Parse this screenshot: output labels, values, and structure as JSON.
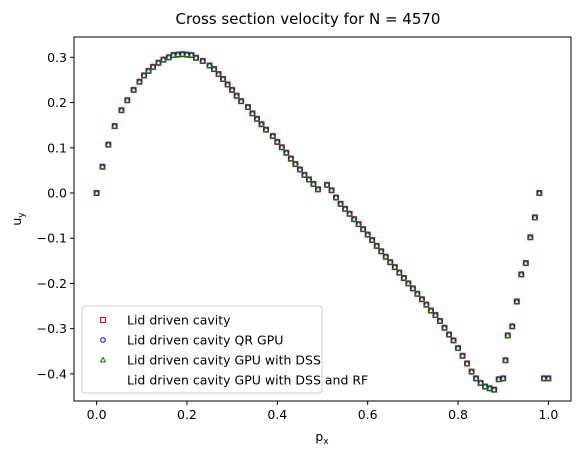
{
  "chart_data": {
    "type": "scatter",
    "title": "Cross section velocity for N = 4570",
    "xlabel_base": "p",
    "xlabel_sub": "x",
    "ylabel_base": "u",
    "ylabel_sub": "y",
    "xlim": [
      -0.05,
      1.05
    ],
    "ylim": [
      -0.46,
      0.345
    ],
    "x_ticks": [
      0.0,
      0.2,
      0.4,
      0.6,
      0.8,
      1.0
    ],
    "x_tick_labels": [
      "0.0",
      "0.2",
      "0.4",
      "0.6",
      "0.8",
      "1.0"
    ],
    "y_ticks": [
      -0.4,
      -0.3,
      -0.2,
      -0.1,
      0.0,
      0.1,
      0.2,
      0.3
    ],
    "y_tick_labels": [
      "−0.4",
      "−0.3",
      "−0.2",
      "−0.1",
      "0.0",
      "0.1",
      "0.2",
      "0.3"
    ],
    "grid": false,
    "legend_position": "lower-left",
    "x": [
      0.0,
      0.013,
      0.026,
      0.04,
      0.055,
      0.068,
      0.082,
      0.095,
      0.105,
      0.115,
      0.125,
      0.137,
      0.148,
      0.16,
      0.17,
      0.18,
      0.19,
      0.2,
      0.21,
      0.22,
      0.235,
      0.25,
      0.26,
      0.27,
      0.28,
      0.29,
      0.3,
      0.31,
      0.32,
      0.335,
      0.345,
      0.355,
      0.365,
      0.375,
      0.39,
      0.4,
      0.41,
      0.42,
      0.43,
      0.44,
      0.45,
      0.46,
      0.47,
      0.48,
      0.49,
      0.51,
      0.52,
      0.53,
      0.54,
      0.55,
      0.56,
      0.57,
      0.58,
      0.59,
      0.6,
      0.61,
      0.62,
      0.63,
      0.64,
      0.65,
      0.66,
      0.67,
      0.68,
      0.69,
      0.7,
      0.71,
      0.72,
      0.73,
      0.74,
      0.75,
      0.76,
      0.77,
      0.78,
      0.79,
      0.8,
      0.81,
      0.82,
      0.83,
      0.84,
      0.85,
      0.86,
      0.87,
      0.88,
      0.89,
      0.9,
      0.905,
      0.91,
      0.92,
      0.93,
      0.94,
      0.95,
      0.96,
      0.97,
      0.98,
      0.99,
      1.0
    ],
    "series": [
      {
        "name": "Lid driven cavity",
        "marker": "square",
        "color": "#ff0000",
        "values": [
          0.0,
          0.058,
          0.107,
          0.148,
          0.183,
          0.205,
          0.228,
          0.246,
          0.26,
          0.27,
          0.279,
          0.288,
          0.295,
          0.3,
          0.305,
          0.306,
          0.307,
          0.306,
          0.305,
          0.299,
          0.292,
          0.282,
          0.274,
          0.263,
          0.252,
          0.24,
          0.228,
          0.215,
          0.203,
          0.19,
          0.176,
          0.164,
          0.152,
          0.14,
          0.126,
          0.113,
          0.101,
          0.089,
          0.076,
          0.064,
          0.052,
          0.04,
          0.03,
          0.02,
          0.008,
          0.018,
          0.006,
          -0.01,
          -0.024,
          -0.035,
          -0.046,
          -0.058,
          -0.069,
          -0.08,
          -0.092,
          -0.104,
          -0.117,
          -0.129,
          -0.141,
          -0.153,
          -0.164,
          -0.176,
          -0.188,
          -0.2,
          -0.211,
          -0.223,
          -0.235,
          -0.247,
          -0.26,
          -0.27,
          -0.283,
          -0.298,
          -0.313,
          -0.326,
          -0.343,
          -0.36,
          -0.377,
          -0.395,
          -0.41,
          -0.42,
          -0.428,
          -0.432,
          -0.435,
          -0.412,
          -0.41,
          -0.37,
          -0.315,
          -0.295,
          -0.24,
          -0.18,
          -0.155,
          -0.098,
          -0.054,
          0.0,
          -0.41,
          -0.41
        ]
      },
      {
        "name": "Lid driven cavity QR GPU",
        "marker": "circle",
        "color": "#0000ff",
        "values": [
          0.0,
          0.058,
          0.107,
          0.148,
          0.183,
          0.205,
          0.228,
          0.246,
          0.26,
          0.27,
          0.279,
          0.288,
          0.295,
          0.3,
          0.305,
          0.306,
          0.307,
          0.306,
          0.305,
          0.299,
          0.292,
          0.282,
          0.274,
          0.263,
          0.252,
          0.24,
          0.228,
          0.215,
          0.203,
          0.19,
          0.176,
          0.164,
          0.152,
          0.14,
          0.126,
          0.113,
          0.101,
          0.089,
          0.076,
          0.064,
          0.052,
          0.04,
          0.03,
          0.02,
          0.008,
          0.018,
          0.006,
          -0.01,
          -0.024,
          -0.035,
          -0.046,
          -0.058,
          -0.069,
          -0.08,
          -0.092,
          -0.104,
          -0.117,
          -0.129,
          -0.141,
          -0.153,
          -0.164,
          -0.176,
          -0.188,
          -0.2,
          -0.211,
          -0.223,
          -0.235,
          -0.247,
          -0.26,
          -0.27,
          -0.283,
          -0.298,
          -0.313,
          -0.326,
          -0.343,
          -0.36,
          -0.377,
          -0.395,
          -0.41,
          -0.42,
          -0.428,
          -0.432,
          -0.435,
          -0.412,
          -0.41,
          -0.37,
          -0.315,
          -0.295,
          -0.24,
          -0.18,
          -0.155,
          -0.098,
          -0.054,
          0.0,
          -0.41,
          -0.41
        ]
      },
      {
        "name": "Lid driven cavity GPU with DSS",
        "marker": "triangle",
        "color": "#008000",
        "values": [
          0.0,
          0.058,
          0.107,
          0.148,
          0.183,
          0.205,
          0.228,
          0.246,
          0.26,
          0.27,
          0.279,
          0.288,
          0.295,
          0.3,
          0.305,
          0.306,
          0.307,
          0.306,
          0.305,
          0.299,
          0.292,
          0.282,
          0.274,
          0.263,
          0.252,
          0.24,
          0.228,
          0.215,
          0.203,
          0.19,
          0.176,
          0.164,
          0.152,
          0.14,
          0.126,
          0.113,
          0.101,
          0.089,
          0.076,
          0.064,
          0.052,
          0.04,
          0.03,
          0.02,
          0.008,
          0.018,
          0.006,
          -0.01,
          -0.024,
          -0.035,
          -0.046,
          -0.058,
          -0.069,
          -0.08,
          -0.092,
          -0.104,
          -0.117,
          -0.129,
          -0.141,
          -0.153,
          -0.164,
          -0.176,
          -0.188,
          -0.2,
          -0.211,
          -0.223,
          -0.235,
          -0.247,
          -0.26,
          -0.27,
          -0.283,
          -0.298,
          -0.313,
          -0.326,
          -0.343,
          -0.36,
          -0.377,
          -0.395,
          -0.41,
          -0.42,
          -0.428,
          -0.432,
          -0.435,
          -0.412,
          -0.41,
          -0.37,
          -0.315,
          -0.295,
          -0.24,
          -0.18,
          -0.155,
          -0.098,
          -0.054,
          0.0,
          -0.41,
          -0.41
        ]
      },
      {
        "name": "Lid driven cavity GPU with DSS and RF",
        "marker": "point",
        "color": "#ffffff",
        "values": [
          0.0,
          0.058,
          0.107,
          0.148,
          0.183,
          0.205,
          0.228,
          0.246,
          0.26,
          0.27,
          0.279,
          0.288,
          0.295,
          0.3,
          0.305,
          0.306,
          0.307,
          0.306,
          0.305,
          0.299,
          0.292,
          0.282,
          0.274,
          0.263,
          0.252,
          0.24,
          0.228,
          0.215,
          0.203,
          0.19,
          0.176,
          0.164,
          0.152,
          0.14,
          0.126,
          0.113,
          0.101,
          0.089,
          0.076,
          0.064,
          0.052,
          0.04,
          0.03,
          0.02,
          0.008,
          0.018,
          0.006,
          -0.01,
          -0.024,
          -0.035,
          -0.046,
          -0.058,
          -0.069,
          -0.08,
          -0.092,
          -0.104,
          -0.117,
          -0.129,
          -0.141,
          -0.153,
          -0.164,
          -0.176,
          -0.188,
          -0.2,
          -0.211,
          -0.223,
          -0.235,
          -0.247,
          -0.26,
          -0.27,
          -0.283,
          -0.298,
          -0.313,
          -0.326,
          -0.343,
          -0.36,
          -0.377,
          -0.395,
          -0.41,
          -0.42,
          -0.428,
          -0.432,
          -0.435,
          -0.412,
          -0.41,
          -0.37,
          -0.315,
          -0.295,
          -0.24,
          -0.18,
          -0.155,
          -0.098,
          -0.054,
          0.0,
          -0.41,
          -0.41
        ]
      }
    ]
  }
}
